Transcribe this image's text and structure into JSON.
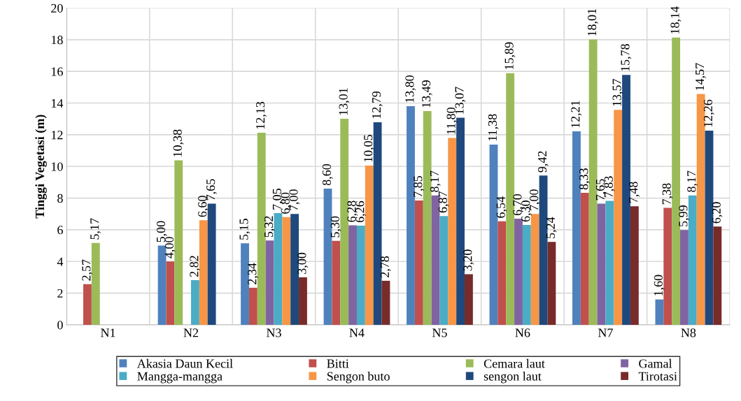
{
  "chart_data": {
    "type": "bar",
    "ylabel": "Tinggi Vegetasi (m)",
    "categories": [
      "N1",
      "N2",
      "N3",
      "N4",
      "N5",
      "N6",
      "N7",
      "N8"
    ],
    "series": [
      {
        "name": "Akasia Daun Kecil",
        "color": "#4f81bd",
        "values": [
          null,
          5.0,
          5.15,
          8.6,
          13.8,
          11.38,
          12.21,
          1.6
        ],
        "value_labels": [
          null,
          "5,00",
          "5,15",
          "8,60",
          "13,80",
          "11,38",
          "12,21",
          "1,60"
        ]
      },
      {
        "name": "Bitti",
        "color": "#c0504d",
        "values": [
          2.57,
          4.0,
          2.34,
          5.3,
          7.85,
          6.54,
          8.33,
          7.38
        ],
        "value_labels": [
          "2,57",
          "4,00",
          "2,34",
          "5,30",
          "7,85",
          "6,54",
          "8,33",
          "7,38"
        ]
      },
      {
        "name": "Cemara laut",
        "color": "#9bbb59",
        "values": [
          5.17,
          10.38,
          12.13,
          13.01,
          13.49,
          15.89,
          18.01,
          18.14
        ],
        "value_labels": [
          "5,17",
          "10,38",
          "12,13",
          "13,01",
          "13,49",
          "15,89",
          "18,01",
          "18,14"
        ]
      },
      {
        "name": "Gamal",
        "color": "#8064a2",
        "values": [
          null,
          null,
          5.32,
          6.28,
          8.17,
          6.7,
          7.65,
          5.99
        ],
        "value_labels": [
          null,
          null,
          "5,32",
          "6,28",
          "8,17",
          "6,70",
          "7,65",
          "5,99"
        ]
      },
      {
        "name": "Mangga-mangga",
        "color": "#4bacc6",
        "values": [
          null,
          2.82,
          7.05,
          6.26,
          6.87,
          6.3,
          7.83,
          8.17
        ],
        "value_labels": [
          null,
          "2,82",
          "7,05",
          "6,26",
          "6,87",
          "6,30",
          "7,83",
          "8,17"
        ]
      },
      {
        "name": "Sengon buto",
        "color": "#f79646",
        "values": [
          null,
          6.6,
          6.8,
          10.05,
          11.8,
          7.0,
          13.57,
          14.57
        ],
        "value_labels": [
          null,
          "6,60",
          "6,80",
          "10,05",
          "11,80",
          "7,00",
          "13,57",
          "14,57"
        ]
      },
      {
        "name": "sengon laut",
        "color": "#1f497d",
        "values": [
          null,
          7.65,
          7.0,
          12.79,
          13.07,
          9.42,
          15.78,
          12.26
        ],
        "value_labels": [
          null,
          "7,65",
          "7,00",
          "12,79",
          "13,07",
          "9,42",
          "15,78",
          "12,26"
        ]
      },
      {
        "name": "Tirotasi",
        "color": "#772c2a",
        "values": [
          null,
          null,
          3.0,
          2.78,
          3.2,
          5.24,
          7.48,
          6.2
        ],
        "value_labels": [
          null,
          null,
          "3,00",
          "2,78",
          "3,20",
          "5,24",
          "7,48",
          "6,20"
        ]
      }
    ],
    "ylim": [
      0,
      20
    ],
    "yticks": [
      0,
      2,
      4,
      6,
      8,
      10,
      12,
      14,
      16,
      18,
      20
    ],
    "grid": true,
    "legend": "bottom"
  }
}
